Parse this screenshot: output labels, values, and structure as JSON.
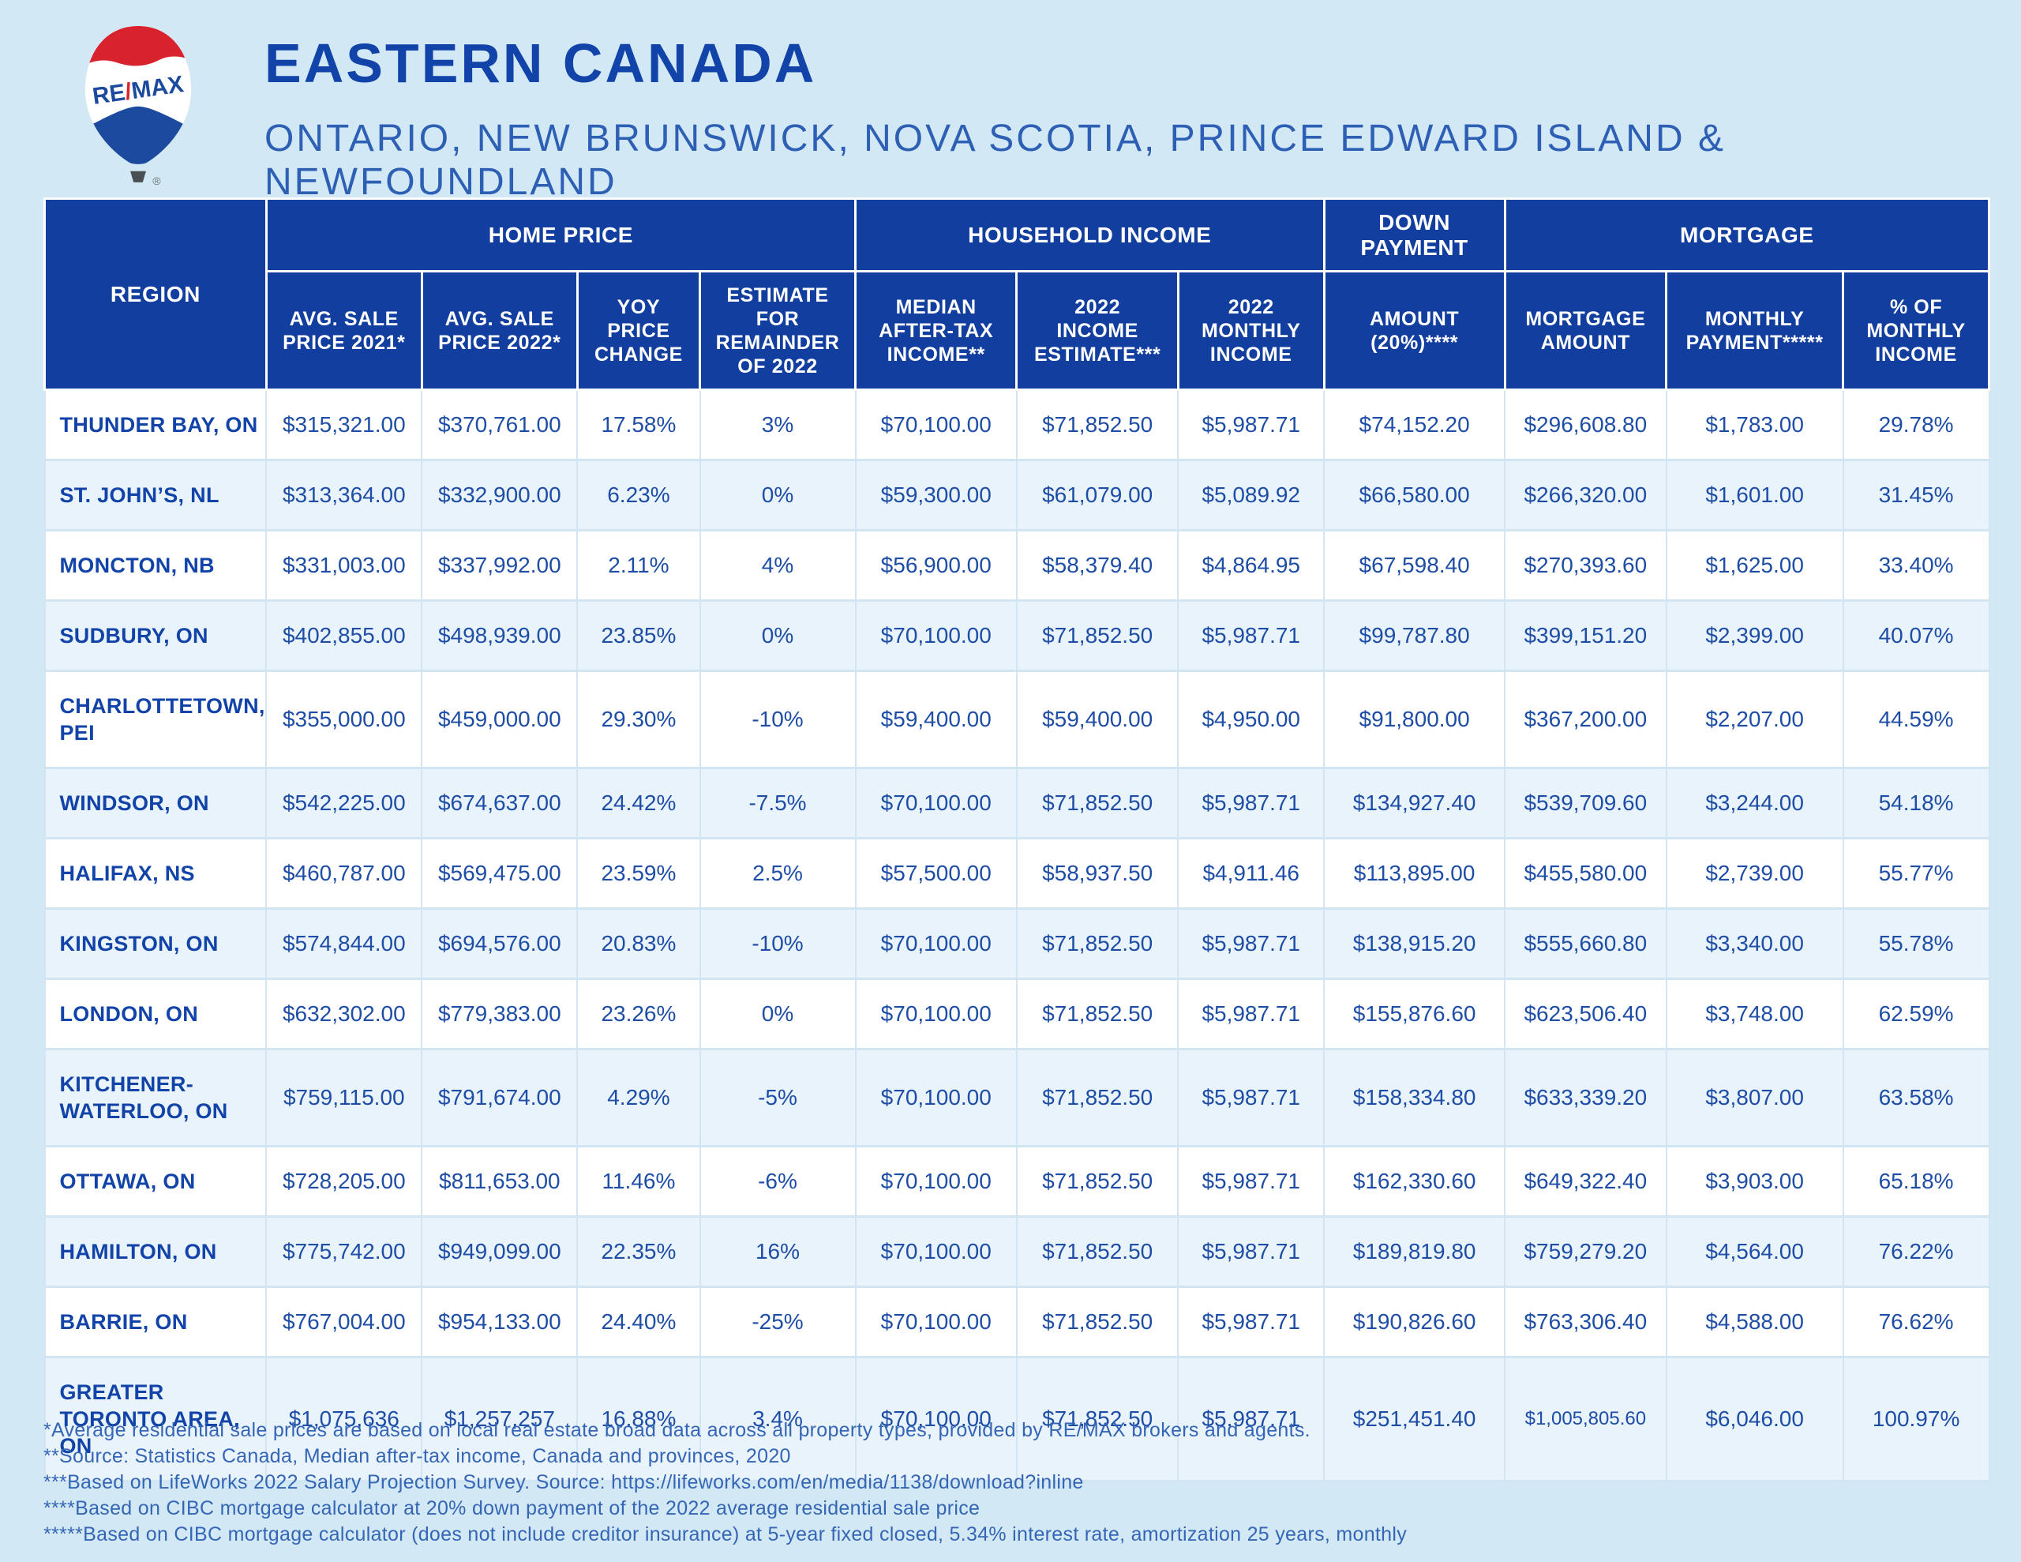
{
  "header": {
    "title": "EASTERN CANADA",
    "subtitle": "ONTARIO, NEW BRUNSWICK, NOVA SCOTIA, PRINCE EDWARD ISLAND & NEWFOUNDLAND"
  },
  "logo": {
    "re": "RE",
    "slash": "/",
    "max": "MAX",
    "registered_mark": "®"
  },
  "colors": {
    "page_background": "#d2e8f5",
    "header_blue": "#123f9f",
    "row_tint": "#e9f3fb",
    "title_blue": "#1143a8",
    "subtitle_blue": "#2d5fb5",
    "data_text_blue": "#1e4da6",
    "footnote_blue": "#3566b5",
    "balloon_red": "#d8232f",
    "balloon_blue": "#1b4a9e"
  },
  "table": {
    "group_headers": [
      {
        "label": "REGION"
      },
      {
        "label": "HOME PRICE"
      },
      {
        "label": "HOUSEHOLD INCOME"
      },
      {
        "label": "DOWN\nPAYMENT"
      },
      {
        "label": "MORTGAGE"
      }
    ],
    "sub_headers": [
      "AVG. SALE\nPRICE 2021*",
      "AVG. SALE\nPRICE 2022*",
      "YOY\nPRICE\nCHANGE",
      "ESTIMATE\nFOR\nREMAINDER\nOF 2022",
      "MEDIAN\nAFTER-TAX\nINCOME**",
      "2022\nINCOME\nESTIMATE***",
      "2022\nMONTHLY\nINCOME",
      "AMOUNT\n(20%)****",
      "MORTGAGE\nAMOUNT",
      "MONTHLY\nPAYMENT*****",
      "% OF\nMONTHLY\nINCOME"
    ],
    "rows": [
      {
        "region": "THUNDER BAY, ON",
        "values": [
          "$315,321.00",
          "$370,761.00",
          "17.58%",
          "3%",
          "$70,100.00",
          "$71,852.50",
          "$5,987.71",
          "$74,152.20",
          "$296,608.80",
          "$1,783.00",
          "29.78%"
        ]
      },
      {
        "region": "ST. JOHN’S, NL",
        "values": [
          "$313,364.00",
          "$332,900.00",
          "6.23%",
          "0%",
          "$59,300.00",
          "$61,079.00",
          "$5,089.92",
          "$66,580.00",
          "$266,320.00",
          "$1,601.00",
          "31.45%"
        ]
      },
      {
        "region": "MONCTON, NB",
        "values": [
          "$331,003.00",
          "$337,992.00",
          "2.11%",
          "4%",
          "$56,900.00",
          "$58,379.40",
          "$4,864.95",
          "$67,598.40",
          "$270,393.60",
          "$1,625.00",
          "33.40%"
        ]
      },
      {
        "region": "SUDBURY, ON",
        "values": [
          "$402,855.00",
          "$498,939.00",
          "23.85%",
          "0%",
          "$70,100.00",
          "$71,852.50",
          "$5,987.71",
          "$99,787.80",
          "$399,151.20",
          "$2,399.00",
          "40.07%"
        ]
      },
      {
        "region": "CHARLOTTETOWN, PEI",
        "values": [
          "$355,000.00",
          "$459,000.00",
          "29.30%",
          "-10%",
          "$59,400.00",
          "$59,400.00",
          "$4,950.00",
          "$91,800.00",
          "$367,200.00",
          "$2,207.00",
          "44.59%"
        ]
      },
      {
        "region": "WINDSOR, ON",
        "values": [
          "$542,225.00",
          "$674,637.00",
          "24.42%",
          "-7.5%",
          "$70,100.00",
          "$71,852.50",
          "$5,987.71",
          "$134,927.40",
          "$539,709.60",
          "$3,244.00",
          "54.18%"
        ]
      },
      {
        "region": "HALIFAX, NS",
        "values": [
          "$460,787.00",
          "$569,475.00",
          "23.59%",
          "2.5%",
          "$57,500.00",
          "$58,937.50",
          "$4,911.46",
          "$113,895.00",
          "$455,580.00",
          "$2,739.00",
          "55.77%"
        ]
      },
      {
        "region": "KINGSTON, ON",
        "values": [
          "$574,844.00",
          "$694,576.00",
          "20.83%",
          "-10%",
          "$70,100.00",
          "$71,852.50",
          "$5,987.71",
          "$138,915.20",
          "$555,660.80",
          "$3,340.00",
          "55.78%"
        ]
      },
      {
        "region": "LONDON, ON",
        "values": [
          "$632,302.00",
          "$779,383.00",
          "23.26%",
          "0%",
          "$70,100.00",
          "$71,852.50",
          "$5,987.71",
          "$155,876.60",
          "$623,506.40",
          "$3,748.00",
          "62.59%"
        ]
      },
      {
        "region": "KITCHENER-WATERLOO, ON",
        "values": [
          "$759,115.00",
          "$791,674.00",
          "4.29%",
          "-5%",
          "$70,100.00",
          "$71,852.50",
          "$5,987.71",
          "$158,334.80",
          "$633,339.20",
          "$3,807.00",
          "63.58%"
        ]
      },
      {
        "region": "OTTAWA, ON",
        "values": [
          "$728,205.00",
          "$811,653.00",
          "11.46%",
          "-6%",
          "$70,100.00",
          "$71,852.50",
          "$5,987.71",
          "$162,330.60",
          "$649,322.40",
          "$3,903.00",
          "65.18%"
        ]
      },
      {
        "region": "HAMILTON, ON",
        "values": [
          "$775,742.00",
          "$949,099.00",
          "22.35%",
          "16%",
          "$70,100.00",
          "$71,852.50",
          "$5,987.71",
          "$189,819.80",
          "$759,279.20",
          "$4,564.00",
          "76.22%"
        ]
      },
      {
        "region": "BARRIE, ON",
        "values": [
          "$767,004.00",
          "$954,133.00",
          "24.40%",
          "-25%",
          "$70,100.00",
          "$71,852.50",
          "$5,987.71",
          "$190,826.60",
          "$763,306.40",
          "$4,588.00",
          "76.62%"
        ]
      },
      {
        "region": "GREATER TORONTO AREA, ON",
        "values": [
          "$1,075,636",
          "$1,257,257",
          "16.88%",
          "3.4%",
          "$70,100.00",
          "$71,852.50",
          "$5,987.71",
          "$251,451.40",
          "$1,005,805.60",
          "$6,046.00",
          "100.97%"
        ]
      }
    ]
  },
  "footnotes": [
    "*Average residential sale prices are based on local real estate broad data across all property types, provided by RE/MAX brokers and agents.",
    "**Source: Statistics Canada, Median after-tax income, Canada and provinces, 2020",
    "***Based on LifeWorks 2022 Salary Projection Survey. Source: https://lifeworks.com/en/media/1138/download?inline",
    "****Based on CIBC mortgage calculator at 20% down payment of the 2022 average residential sale price",
    "*****Based on CIBC mortgage calculator (does not include creditor insurance) at 5-year fixed closed, 5.34% interest rate, amortization 25 years, monthly"
  ]
}
